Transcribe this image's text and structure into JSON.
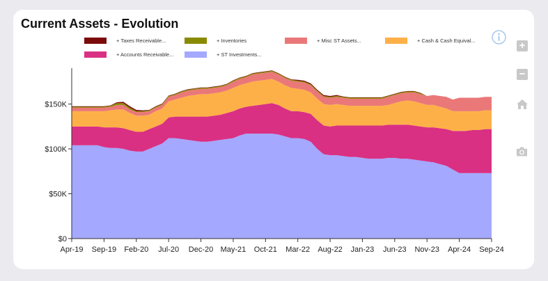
{
  "chart_data": {
    "type": "area",
    "stacked": true,
    "title": "Current Assets - Evolution",
    "ylim": [
      0,
      190000
    ],
    "yticks": [
      0,
      50000,
      100000,
      150000
    ],
    "ytick_labels": [
      "$0",
      "$50K",
      "$100K",
      "$150K"
    ],
    "x": [
      "Apr-19",
      "May-19",
      "Jun-19",
      "Jul-19",
      "Aug-19",
      "Sep-19",
      "Oct-19",
      "Nov-19",
      "Dec-19",
      "Jan-20",
      "Feb-20",
      "Mar-20",
      "Apr-20",
      "May-20",
      "Jun-20",
      "Jul-20",
      "Aug-20",
      "Sep-20",
      "Oct-20",
      "Nov-20",
      "Dec-20",
      "Jan-21",
      "Feb-21",
      "Mar-21",
      "Apr-21",
      "May-21",
      "Jun-21",
      "Jul-21",
      "Aug-21",
      "Sep-21",
      "Oct-21",
      "Nov-21",
      "Dec-21",
      "Jan-22",
      "Feb-22",
      "Mar-22",
      "Apr-22",
      "May-22",
      "Jun-22",
      "Jul-22",
      "Aug-22",
      "Sep-22",
      "Oct-22",
      "Nov-22",
      "Dec-22",
      "Jan-23",
      "Feb-23",
      "Mar-23",
      "Apr-23",
      "May-23",
      "Jun-23",
      "Jul-23",
      "Aug-23",
      "Sep-23",
      "Oct-23",
      "Nov-23",
      "Dec-23",
      "Jan-24",
      "Feb-24",
      "Mar-24",
      "Apr-24",
      "May-24",
      "Jun-24",
      "Jul-24",
      "Aug-24",
      "Sep-24"
    ],
    "xticks": [
      "Apr-19",
      "Sep-19",
      "Feb-20",
      "Jul-20",
      "Dec-20",
      "May-21",
      "Oct-21",
      "Mar-22",
      "Aug-22",
      "Jan-23",
      "Jun-23",
      "Nov-23",
      "Apr-24",
      "Sep-24"
    ],
    "series": [
      {
        "name": "+ ST Investments...",
        "color": "#a4a8fe",
        "values": [
          104000,
          104000,
          104000,
          104000,
          104000,
          102000,
          101000,
          101000,
          100000,
          98000,
          97000,
          97000,
          100000,
          103000,
          106000,
          112000,
          112000,
          111000,
          110000,
          109000,
          108000,
          108000,
          109000,
          110000,
          111000,
          112000,
          115000,
          117000,
          117000,
          117000,
          117000,
          117000,
          116000,
          114000,
          112000,
          112000,
          111000,
          108000,
          100000,
          94000,
          93000,
          93000,
          92000,
          91000,
          91000,
          90000,
          89000,
          89000,
          89000,
          90000,
          90000,
          89000,
          89000,
          88000,
          87000,
          86000,
          85000,
          83000,
          81000,
          77000,
          73000,
          73000,
          73000,
          73000,
          73000,
          73000
        ]
      },
      {
        "name": "+ Accounts Receivable...",
        "color": "#d93083",
        "values": [
          21000,
          21000,
          21000,
          21000,
          21000,
          22000,
          23000,
          23000,
          23000,
          23000,
          22000,
          22000,
          22000,
          22000,
          22000,
          23000,
          24000,
          25000,
          26000,
          27000,
          28000,
          28000,
          28000,
          28000,
          29000,
          30000,
          30000,
          30000,
          31000,
          32000,
          33000,
          34000,
          33000,
          31000,
          30000,
          30000,
          30000,
          31000,
          32000,
          32000,
          32000,
          33000,
          34000,
          35000,
          35000,
          36000,
          37000,
          37000,
          37000,
          37000,
          37000,
          38000,
          38000,
          38000,
          38000,
          38000,
          39000,
          40000,
          41000,
          43000,
          47000,
          47000,
          48000,
          48000,
          49000,
          49000
        ]
      },
      {
        "name": "+ Cash & Cash Equival...",
        "color": "#feb048",
        "values": [
          17000,
          17000,
          17000,
          17000,
          17000,
          18000,
          19000,
          20000,
          21000,
          19000,
          18000,
          18000,
          16000,
          17000,
          17000,
          18000,
          19000,
          21000,
          23000,
          24000,
          25000,
          25000,
          25000,
          25000,
          25000,
          26000,
          26000,
          26000,
          27000,
          27000,
          27000,
          27000,
          26000,
          26000,
          26000,
          25000,
          25000,
          24000,
          24000,
          24000,
          24000,
          24000,
          23000,
          22000,
          22000,
          22000,
          22000,
          22000,
          22000,
          22000,
          24000,
          26000,
          27000,
          27000,
          26000,
          25000,
          25000,
          24000,
          23000,
          22000,
          22000,
          22000,
          21000,
          21000,
          21000,
          21000
        ]
      },
      {
        "name": "+ Misc ST Assets...",
        "color": "#ea7878",
        "values": [
          4000,
          4000,
          4000,
          4000,
          4000,
          4000,
          4000,
          5000,
          5000,
          4000,
          4000,
          4000,
          4000,
          4000,
          4000,
          5000,
          5000,
          6000,
          6000,
          6000,
          6000,
          6000,
          6000,
          6000,
          6000,
          7000,
          7000,
          7000,
          8000,
          8000,
          8000,
          8000,
          8000,
          8000,
          8000,
          8000,
          8000,
          8000,
          8000,
          8000,
          8000,
          8000,
          8000,
          8000,
          8000,
          8000,
          8000,
          8000,
          8000,
          9000,
          9000,
          9000,
          9000,
          10000,
          10000,
          10000,
          11000,
          12000,
          13000,
          13000,
          15000,
          15000,
          15000,
          15000,
          15000,
          15000
        ]
      },
      {
        "name": "+ Inventories",
        "color": "#8a8a00",
        "values": [
          1000,
          1000,
          1000,
          1000,
          1000,
          1000,
          1000,
          2000,
          2000,
          2000,
          1000,
          1000,
          1000,
          1000,
          1000,
          1000,
          1000,
          1000,
          1000,
          1000,
          1000,
          1000,
          1000,
          1000,
          1000,
          1000,
          1000,
          1000,
          1000,
          1000,
          1000,
          1000,
          1000,
          1000,
          1000,
          1000,
          1000,
          1000,
          1000,
          1000,
          1000,
          1000,
          1000,
          1000,
          1000,
          1000,
          1000,
          1000,
          1000,
          1000,
          1000,
          1000,
          1000,
          1000,
          1000,
          0,
          0,
          0,
          0,
          0,
          0,
          0,
          0,
          0,
          0,
          0
        ]
      },
      {
        "name": "+ Taxes Receivable...",
        "color": "#7b0b0b",
        "values": [
          500,
          500,
          500,
          500,
          500,
          500,
          500,
          1000,
          1500,
          1500,
          1500,
          1000,
          500,
          500,
          500,
          500,
          500,
          500,
          500,
          500,
          500,
          500,
          500,
          500,
          500,
          500,
          500,
          500,
          500,
          500,
          500,
          500,
          500,
          500,
          500,
          1000,
          1000,
          1000,
          1000,
          1000,
          1000,
          1000,
          500,
          500,
          500,
          500,
          500,
          500,
          500,
          500,
          500,
          500,
          500,
          500,
          500,
          0,
          0,
          0,
          0,
          0,
          0,
          0,
          0,
          0,
          0,
          0
        ]
      }
    ],
    "legend_order": [
      "+ Taxes Receivable...",
      "+ Inventories",
      "+ Misc ST Assets...",
      "+ Cash & Cash Equival...",
      "+ Accounts Receivable...",
      "+ ST Investments..."
    ],
    "legend_position": "top"
  },
  "toolbar": {
    "info": "info-icon",
    "zoom_in": "+",
    "zoom_out": "−",
    "home": "home-icon",
    "camera": "camera-icon"
  }
}
